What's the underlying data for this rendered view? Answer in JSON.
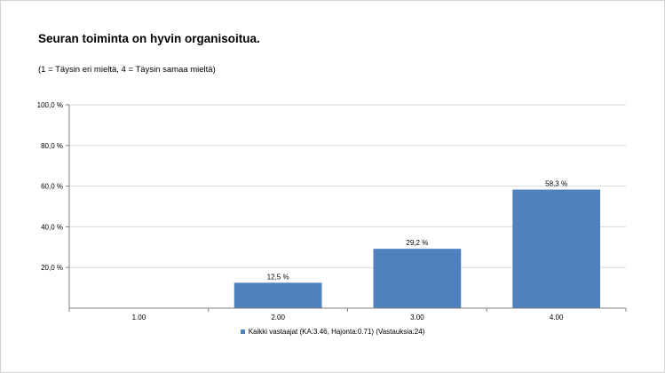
{
  "chart_data": {
    "type": "bar",
    "title": "Seuran toiminta on hyvin organisoitua.",
    "subtitle": "(1 = Täysin eri mieltä, 4 = Täysin samaa mieltä)",
    "categories": [
      "1.00",
      "2.00",
      "3.00",
      "4.00"
    ],
    "series": [
      {
        "name": "Kaikki vastaajat (KA:3.46, Hajonta:0.71) (Vastauksia:24)",
        "values": [
          0,
          12.5,
          29.2,
          58.3
        ],
        "labels": [
          "",
          "12,5 %",
          "29,2 %",
          "58,3 %"
        ]
      }
    ],
    "ylim": [
      0,
      100
    ],
    "yticks": [
      20,
      40,
      60,
      80,
      100
    ],
    "ytick_labels": [
      "20,0 %",
      "40,0 %",
      "60,0 %",
      "80,0 %",
      "100,0 %"
    ],
    "grid": true,
    "legend_position": "bottom",
    "bar_color": "#4f81bd",
    "grid_color": "#d9d9d9"
  }
}
